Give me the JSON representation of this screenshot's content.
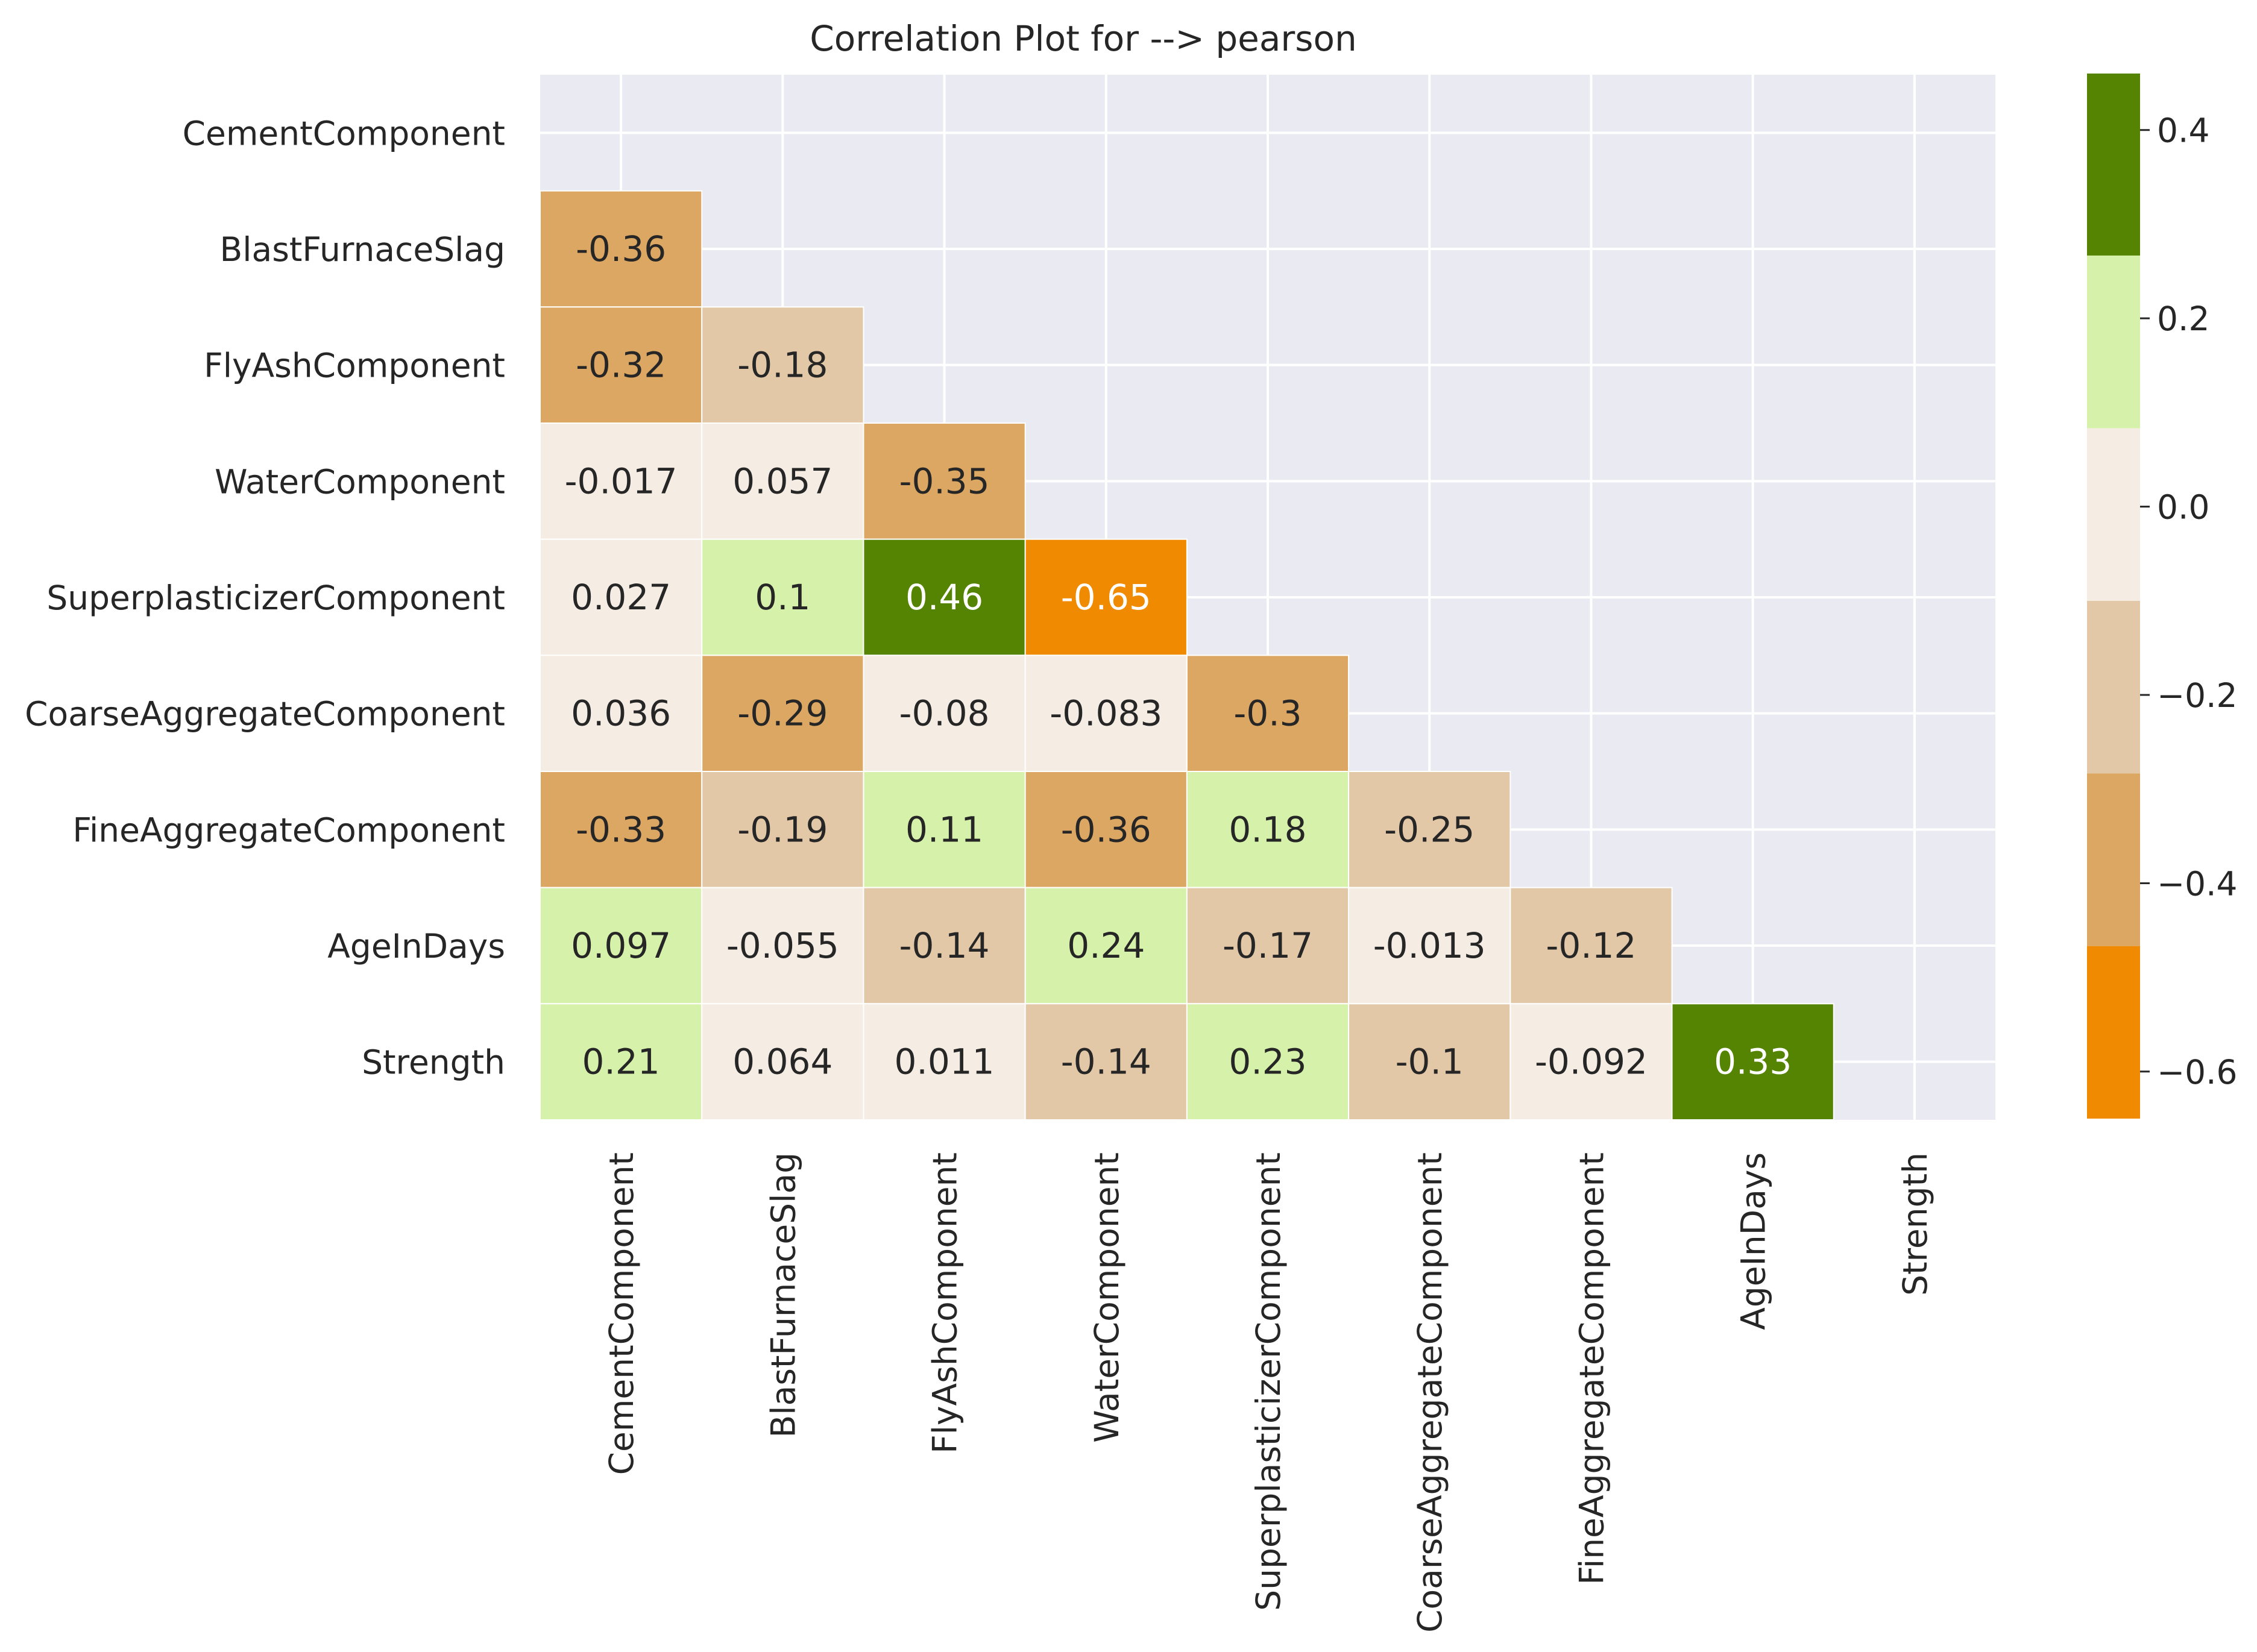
{
  "chart_data": {
    "type": "heatmap",
    "title": "Correlation Plot for --> pearson",
    "row_labels": [
      "CementComponent",
      "BlastFurnaceSlag",
      "FlyAshComponent",
      "WaterComponent",
      "SuperplasticizerComponent",
      "CoarseAggregateComponent",
      "FineAggregateComponent",
      "AgeInDays",
      "Strength"
    ],
    "col_labels": [
      "CementComponent",
      "BlastFurnaceSlag",
      "FlyAshComponent",
      "WaterComponent",
      "SuperplasticizerComponent",
      "CoarseAggregateComponent",
      "FineAggregateComponent",
      "AgeInDays",
      "Strength"
    ],
    "masked": "upper-triangle-and-diagonal",
    "values": [
      [
        null,
        null,
        null,
        null,
        null,
        null,
        null,
        null,
        null
      ],
      [
        -0.36,
        null,
        null,
        null,
        null,
        null,
        null,
        null,
        null
      ],
      [
        -0.32,
        -0.18,
        null,
        null,
        null,
        null,
        null,
        null,
        null
      ],
      [
        -0.017,
        0.057,
        -0.35,
        null,
        null,
        null,
        null,
        null,
        null
      ],
      [
        0.027,
        0.1,
        0.46,
        -0.65,
        null,
        null,
        null,
        null,
        null
      ],
      [
        0.036,
        -0.29,
        -0.08,
        -0.083,
        -0.3,
        null,
        null,
        null,
        null
      ],
      [
        -0.33,
        -0.19,
        0.11,
        -0.36,
        0.18,
        -0.25,
        null,
        null,
        null
      ],
      [
        0.097,
        -0.055,
        -0.14,
        0.24,
        -0.17,
        -0.013,
        -0.12,
        null,
        null
      ],
      [
        0.21,
        0.064,
        0.011,
        -0.14,
        0.23,
        -0.1,
        -0.092,
        0.33,
        null
      ]
    ],
    "value_labels": [
      [
        null,
        null,
        null,
        null,
        null,
        null,
        null,
        null,
        null
      ],
      [
        "-0.36",
        null,
        null,
        null,
        null,
        null,
        null,
        null,
        null
      ],
      [
        "-0.32",
        "-0.18",
        null,
        null,
        null,
        null,
        null,
        null,
        null
      ],
      [
        "-0.017",
        "0.057",
        "-0.35",
        null,
        null,
        null,
        null,
        null,
        null
      ],
      [
        "0.027",
        "0.1",
        "0.46",
        "-0.65",
        null,
        null,
        null,
        null,
        null
      ],
      [
        "0.036",
        "-0.29",
        "-0.08",
        "-0.083",
        "-0.3",
        null,
        null,
        null,
        null
      ],
      [
        "-0.33",
        "-0.19",
        "0.11",
        "-0.36",
        "0.18",
        "-0.25",
        null,
        null,
        null
      ],
      [
        "0.097",
        "-0.055",
        "-0.14",
        "0.24",
        "-0.17",
        "-0.013",
        "-0.12",
        null,
        null
      ],
      [
        "0.21",
        "0.064",
        "0.011",
        "-0.14",
        "0.23",
        "-0.1",
        "-0.092",
        "0.33",
        null
      ]
    ],
    "colorbar": {
      "range": [
        -0.65,
        0.46
      ],
      "boundaries": [
        -0.65,
        -0.4667,
        -0.2833,
        -0.1,
        0.0833,
        0.2667,
        0.46
      ],
      "colors": [
        "#F08A00",
        "#DCA762",
        "#E2C8A6",
        "#F5EDE3",
        "#D6F2AA",
        "#548401"
      ],
      "ticks": [
        -0.6,
        -0.4,
        -0.2,
        0.0,
        0.2,
        0.4
      ],
      "tick_labels": [
        "−0.6",
        "−0.4",
        "−0.2",
        "0.0",
        "0.2",
        "0.4"
      ]
    },
    "colors": {
      "plot_background": "#EAEAF2",
      "grid": "#FFFFFF",
      "text_dark": "#262626",
      "text_light": "#FFFFFF"
    },
    "grid": true
  }
}
